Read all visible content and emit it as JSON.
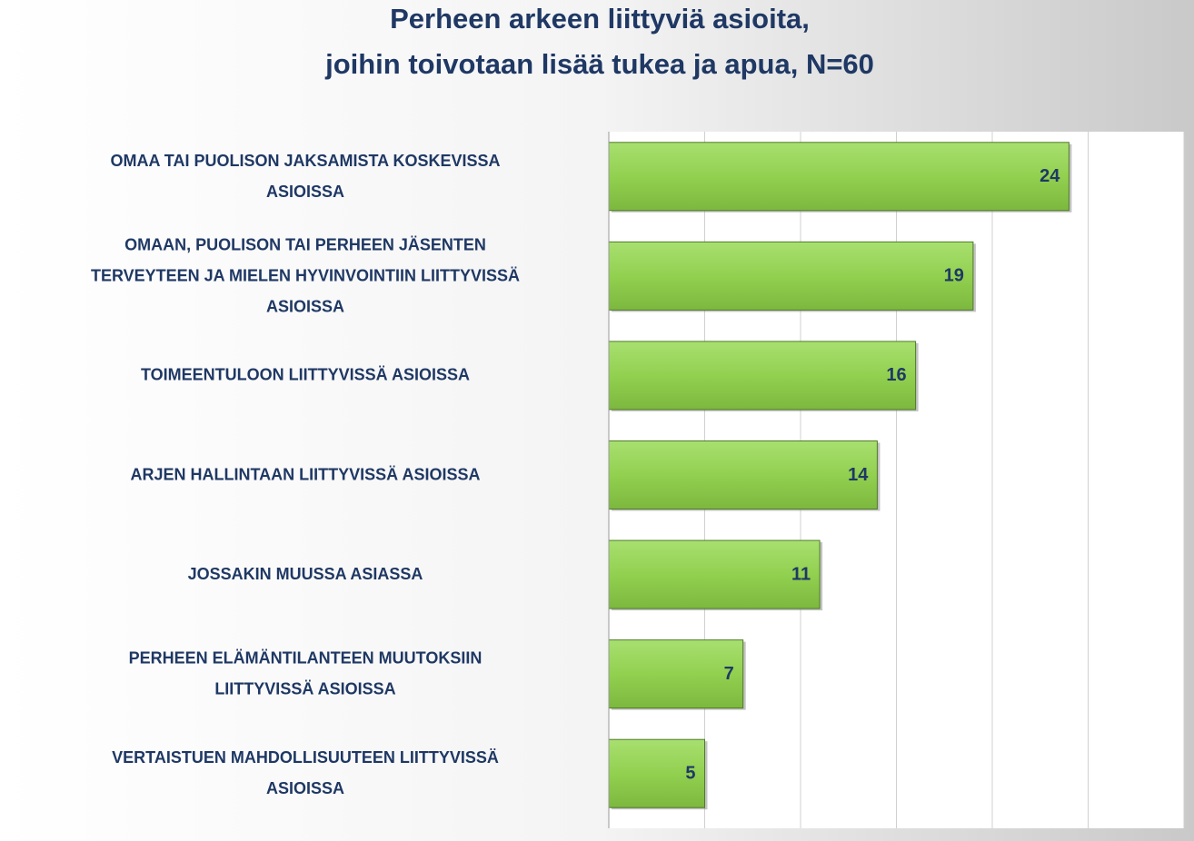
{
  "chart_data": {
    "type": "barh",
    "title": "Perheen arkeen liittyviä asioita,\njoihin toivotaan lisää tukea ja apua, N=60",
    "categories": [
      "OMAA TAI PUOLISON JAKSAMISTA KOSKEVISSA\nASIOISSA",
      "OMAAN, PUOLISON TAI PERHEEN JÄSENTEN\nTERVEYTEEN JA MIELEN HYVINVOINTIIN LIITTYVISSÄ\nASIOISSA",
      "TOIMEENTULOON LIITTYVISSÄ ASIOISSA",
      "ARJEN HALLINTAAN LIITTYVISSÄ ASIOISSA",
      "JOSSAKIN MUUSSA ASIASSA",
      "PERHEEN ELÄMÄNTILANTEEN MUUTOKSIIN\nLIITTYVISSÄ ASIOISSA",
      "VERTAISTUEN MAHDOLLISUUTEEN LIITTYVISSÄ\nASIOISSA"
    ],
    "values": [
      24,
      19,
      16,
      14,
      11,
      7,
      5
    ],
    "color": "#92d050",
    "xlim": [
      0,
      30
    ],
    "xticks": [
      0,
      5,
      10,
      15,
      20,
      25,
      30
    ],
    "grid": true
  }
}
